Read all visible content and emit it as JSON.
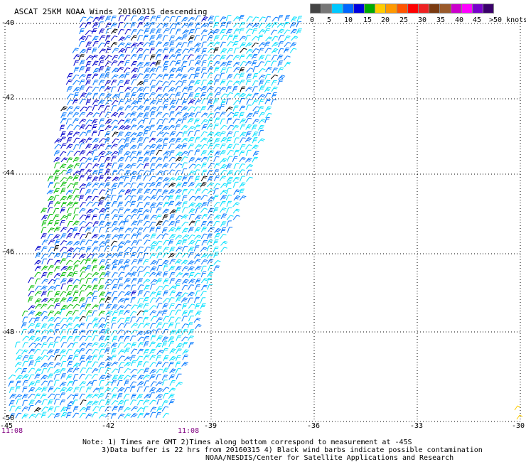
{
  "title": "ASCAT 25KM NOAA Winds 20160315 descending",
  "colorbar": {
    "colors": [
      "#444444",
      "#777777",
      "#00c8ff",
      "#0066ff",
      "#0000dd",
      "#00aa00",
      "#ffcc00",
      "#ff9900",
      "#ff5500",
      "#ff0000",
      "#ee2222",
      "#7a3a10",
      "#9a5a2a",
      "#cc00cc",
      "#ff00ff",
      "#7700cc",
      "#3a006a"
    ],
    "labels": [
      "0",
      "5",
      "10",
      "15",
      "20",
      "25",
      "30",
      "35",
      "40",
      "45",
      ">50 knots"
    ]
  },
  "map": {
    "lat_labels": [
      "-40",
      "-42",
      "-44",
      "-46",
      "-48",
      "-50"
    ],
    "lon_labels": [
      "-45",
      "-42",
      "-39",
      "-36",
      "-33",
      "-30"
    ],
    "time_labels": [
      "11:08",
      "11:08"
    ],
    "barb_colors": {
      "calm": "#00e0ff",
      "light": "#0077ff",
      "moderate": "#0000cc",
      "fresh": "#00bb00",
      "strong": "#ffcc00",
      "contaminated": "#000000"
    }
  },
  "notes": {
    "line1": "Note: 1) Times are GMT 2)Times along bottom correspond to measurement at -45S",
    "line2": "3)Data buffer is 22 hrs from 20160315 4) Black wind barbs indicate possible contamination",
    "line3": "NOAA/NESDIS/Center for Satellite Applications and Research"
  }
}
